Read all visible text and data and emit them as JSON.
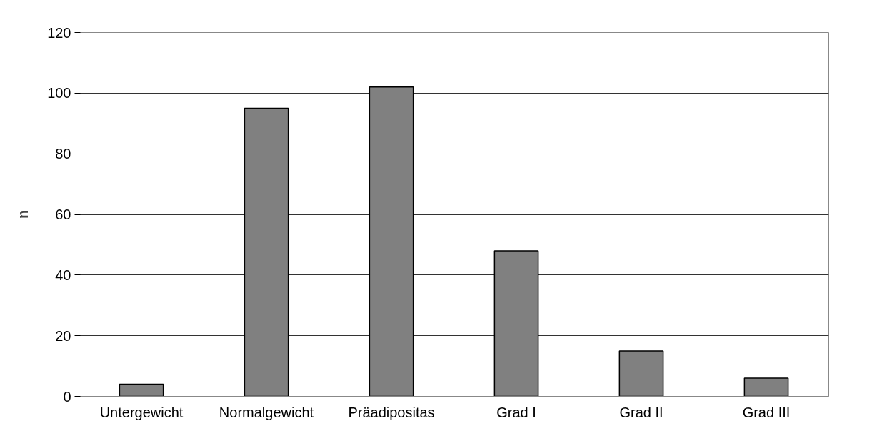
{
  "chart_data": {
    "type": "bar",
    "ylabel": "n",
    "categories": [
      "Untergewicht",
      "Normalgewicht",
      "Präadipositas",
      "Grad I",
      "Grad II",
      "Grad III"
    ],
    "values": [
      4,
      95,
      102,
      48,
      15,
      6
    ],
    "color": "#808080",
    "ylim": [
      0,
      120
    ],
    "yticks": [
      0,
      20,
      40,
      60,
      80,
      100,
      120
    ],
    "grid": "y"
  }
}
